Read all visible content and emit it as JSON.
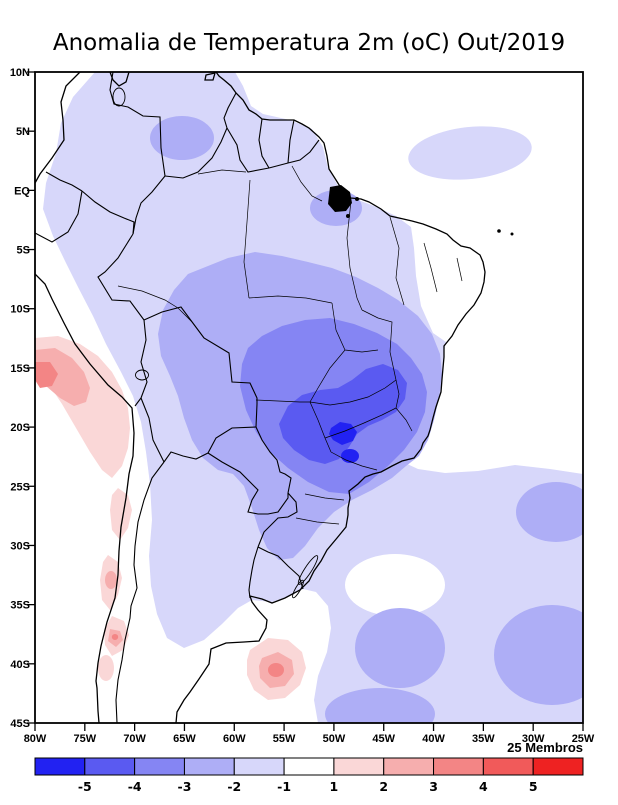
{
  "title": "Anomalia de Temperatura 2m (oC) Out/2019",
  "ensemble_label": "25 Membros",
  "axes": {
    "lat_ticks": [
      "10N",
      "5N",
      "EQ",
      "5S",
      "10S",
      "15S",
      "20S",
      "25S",
      "30S",
      "35S",
      "40S",
      "45S"
    ],
    "lon_ticks": [
      "80W",
      "75W",
      "70W",
      "65W",
      "60W",
      "55W",
      "50W",
      "45W",
      "40W",
      "35W",
      "30W",
      "25W"
    ]
  },
  "colorbar": {
    "tick_labels": [
      "-5",
      "-4",
      "-3",
      "-2",
      "-1",
      "1",
      "2",
      "3",
      "4",
      "5"
    ],
    "cell_colors": [
      "#2222f2",
      "#5a5af1",
      "#8585f3",
      "#aeaef6",
      "#d7d7fa",
      "#ffffff",
      "#fad7d7",
      "#f6aeae",
      "#f38585",
      "#f15a5a",
      "#ee2222"
    ]
  },
  "palette": {
    "blue_m5": "#2222f2",
    "blue_m4": "#5a5af1",
    "blue_m3": "#8585f3",
    "blue_m2": "#aeaef6",
    "blue_m1": "#d7d7fa",
    "neutral": "#ffffff",
    "pink_p1": "#fad7d7",
    "pink_p2": "#f6aeae",
    "pink_p3": "#f38585",
    "line_color": "#000000"
  },
  "map_data": {
    "type": "filled-contour-map",
    "variable": "Anomalia de Temperatura 2m",
    "units": "oC",
    "period_label": "Out/2019",
    "ensemble_members": 25,
    "lon_range": [
      "80W",
      "25W"
    ],
    "lat_range": [
      "45S",
      "10N"
    ],
    "contour_levels": [
      -5,
      -4,
      -3,
      -2,
      -1,
      1,
      2,
      3,
      4,
      5
    ],
    "regions": [
      {
        "area": "central Brazil (Mato Grosso do Sul, Goias, Minas Gerais)",
        "anomaly_oC": "-4 to -5"
      },
      {
        "area": "central-southern Brazil, Bolivia, Paraguay",
        "anomaly_oC": "-3 to -4"
      },
      {
        "area": "most of Brazil, Uruguay, northern Argentina, Amazon basin, Venezuela, Colombia, Guianas",
        "anomaly_oC": "-1 to -3"
      },
      {
        "area": "tropical North Atlantic blob near 3N 33W",
        "anomaly_oC": "-1 to -2"
      },
      {
        "area": "southwest Atlantic between 25S and 45S",
        "anomaly_oC": "-1 to -3"
      },
      {
        "area": "coastal Peru and adjacent Pacific",
        "anomaly_oC": "+1 to +4"
      },
      {
        "area": "central Chile coast (small spots)",
        "anomaly_oC": "+1 to +4"
      },
      {
        "area": "South Atlantic blob near 40S 54W",
        "anomaly_oC": "+1 to +4"
      },
      {
        "area": "northeast Brazil coastal strip, Patagonia, Caribbean corner",
        "anomaly_oC": "-1 to +1 (unshaded)"
      }
    ]
  }
}
